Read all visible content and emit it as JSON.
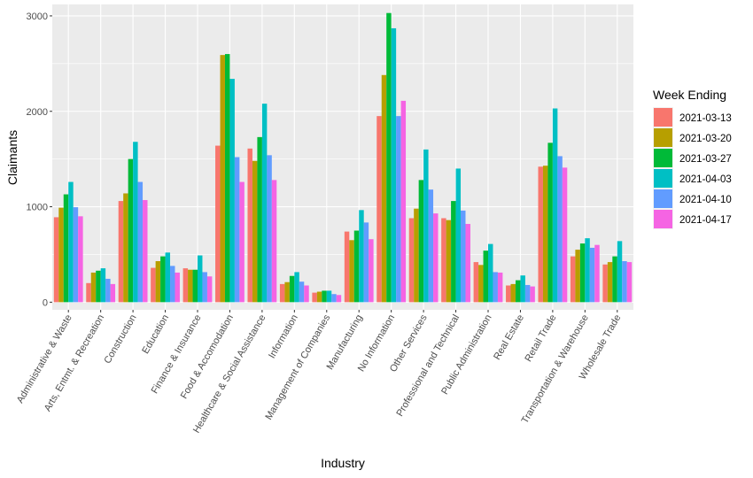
{
  "chart_data": {
    "type": "bar",
    "xlabel": "Industry",
    "ylabel": "Claimants",
    "ylim": [
      -80,
      3120
    ],
    "yticks": [
      0,
      1000,
      2000,
      3000
    ],
    "grid": true,
    "legend": {
      "title": "Week Ending",
      "placement": "right"
    },
    "categories": [
      "Administrative & Waste",
      "Arts, Entmt. & Recreation",
      "Construction",
      "Education",
      "Finance & Insurance",
      "Food & Accomodation",
      "Healthcare & Social Assistance",
      "Information",
      "Management of Companies",
      "Manufacturing",
      "No Information",
      "Other Services",
      "Professional and Technical",
      "Public Administration",
      "Real Estate",
      "Retail Trade",
      "Transportation & Warehouse",
      "Wholesale Trade"
    ],
    "series": [
      {
        "name": "2021-03-13",
        "color": "#F8766D",
        "values": [
          890,
          200,
          1060,
          360,
          355,
          1640,
          1610,
          190,
          100,
          740,
          1950,
          880,
          880,
          420,
          175,
          1420,
          480,
          395
        ]
      },
      {
        "name": "2021-03-20",
        "color": "#B79F00",
        "values": [
          990,
          310,
          1140,
          430,
          340,
          2590,
          1480,
          210,
          110,
          650,
          2380,
          980,
          860,
          390,
          190,
          1430,
          550,
          420
        ]
      },
      {
        "name": "2021-03-27",
        "color": "#00BA38",
        "values": [
          1130,
          330,
          1500,
          480,
          340,
          2600,
          1730,
          275,
          120,
          750,
          3030,
          1280,
          1060,
          540,
          230,
          1670,
          615,
          480
        ]
      },
      {
        "name": "2021-04-03",
        "color": "#00BFC4",
        "values": [
          1260,
          355,
          1680,
          520,
          490,
          2340,
          2080,
          315,
          120,
          965,
          2870,
          1600,
          1400,
          610,
          280,
          2030,
          670,
          640
        ]
      },
      {
        "name": "2021-04-10",
        "color": "#619CFF",
        "values": [
          995,
          245,
          1260,
          380,
          315,
          1520,
          1540,
          215,
          85,
          835,
          1950,
          1180,
          960,
          315,
          180,
          1530,
          570,
          430
        ]
      },
      {
        "name": "2021-04-17",
        "color": "#F564E3",
        "values": [
          900,
          190,
          1070,
          310,
          270,
          1260,
          1280,
          175,
          75,
          660,
          2110,
          930,
          820,
          310,
          165,
          1410,
          600,
          420
        ]
      }
    ]
  }
}
